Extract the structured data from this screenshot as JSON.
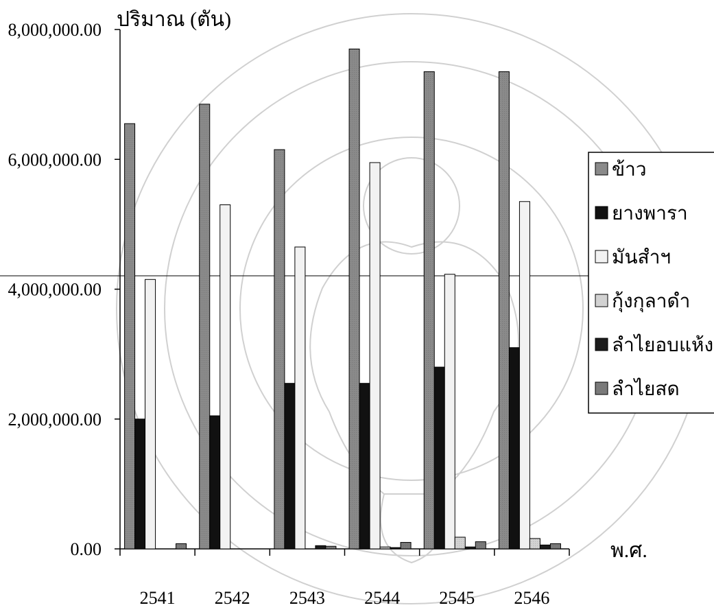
{
  "chart_data": {
    "type": "bar",
    "title": "",
    "ylabel": "ปริมาณ (ตัน)",
    "xlabel": "พ.ศ.",
    "categories": [
      "2541",
      "2542",
      "2543",
      "2544",
      "2545",
      "2546"
    ],
    "ylim": [
      0,
      8000000
    ],
    "yticks": [
      0,
      2000000,
      4000000,
      6000000,
      8000000
    ],
    "ytick_labels": [
      "0.00",
      "2,000,000.00",
      "4,000,000.00",
      "6,000,000.00",
      "8,000,000.00"
    ],
    "grid": false,
    "legend_position": "right",
    "series": [
      {
        "name": "ข้าว",
        "values": [
          6550000,
          6850000,
          6150000,
          7700000,
          7350000,
          7350000
        ]
      },
      {
        "name": "ยางพารา",
        "values": [
          2000000,
          2050000,
          2550000,
          2550000,
          2800000,
          3100000
        ]
      },
      {
        "name": "มันสำฯ",
        "values": [
          4150000,
          5300000,
          4650000,
          5950000,
          4230000,
          5350000
        ]
      },
      {
        "name": "กุ้งกุลาดำ",
        "values": [
          0,
          0,
          0,
          30000,
          180000,
          160000
        ]
      },
      {
        "name": "ลำไยอบแห้ง",
        "values": [
          0,
          0,
          50000,
          20000,
          30000,
          60000
        ]
      },
      {
        "name": "ลำไยสด",
        "values": [
          80000,
          0,
          40000,
          100000,
          110000,
          80000
        ]
      }
    ]
  },
  "colors": {
    "series": [
      "#8a8a8a",
      "#111111",
      "#f2f2f2",
      "#d2d2d2",
      "#1c1c1c",
      "#7a7a7a"
    ],
    "stroke": "#000000"
  }
}
